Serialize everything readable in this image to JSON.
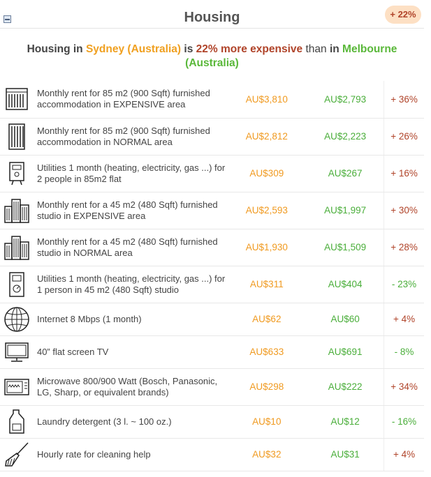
{
  "header": {
    "title": "Housing",
    "badge": "+ 22%"
  },
  "summary": {
    "prefix": "Housing in",
    "city1": "Sydney (Australia)",
    "is": "is",
    "pct_text": "22% more expensive",
    "than": "than",
    "in": "in",
    "city2_line1": "Melbourne",
    "city2_line2": "(Australia)"
  },
  "colors": {
    "city1": "#f0a020",
    "city2": "#5ab83a",
    "increase": "#b0442a",
    "decrease": "#4aae3a",
    "badge_bg": "#fde0c4"
  },
  "rows": [
    {
      "icon": "apartment-building-icon",
      "label": "Monthly rent for 85 m2 (900 Sqft) furnished accommodation in EXPENSIVE area",
      "value1": "AU$3,810",
      "value2": "AU$2,793",
      "diff": "+ 36%",
      "trend": "up"
    },
    {
      "icon": "tall-building-icon",
      "label": "Monthly rent for 85 m2 (900 Sqft) furnished accommodation in NORMAL area",
      "value1": "AU$2,812",
      "value2": "AU$2,223",
      "diff": "+ 26%",
      "trend": "up"
    },
    {
      "icon": "utility-meter-icon",
      "label": "Utilities 1 month (heating, electricity, gas ...) for 2 people in 85m2 flat",
      "value1": "AU$309",
      "value2": "AU$267",
      "diff": "+ 16%",
      "trend": "up"
    },
    {
      "icon": "city-buildings-icon",
      "label": "Monthly rent for a 45 m2 (480 Sqft) furnished studio in EXPENSIVE area",
      "value1": "AU$2,593",
      "value2": "AU$1,997",
      "diff": "+ 30%",
      "trend": "up"
    },
    {
      "icon": "city-buildings-icon",
      "label": "Monthly rent for a 45 m2 (480 Sqft) furnished studio in NORMAL area",
      "value1": "AU$1,930",
      "value2": "AU$1,509",
      "diff": "+ 28%",
      "trend": "up"
    },
    {
      "icon": "electric-meter-icon",
      "label": "Utilities 1 month (heating, electricity, gas ...) for 1 person in 45 m2 (480 Sqft) studio",
      "value1": "AU$311",
      "value2": "AU$404",
      "diff": "- 23%",
      "trend": "down"
    },
    {
      "icon": "globe-icon",
      "label": "Internet 8 Mbps (1 month)",
      "value1": "AU$62",
      "value2": "AU$60",
      "diff": "+ 4%",
      "trend": "up"
    },
    {
      "icon": "tv-icon",
      "label": "40” flat screen TV",
      "value1": "AU$633",
      "value2": "AU$691",
      "diff": "- 8%",
      "trend": "down"
    },
    {
      "icon": "microwave-icon",
      "label": "Microwave 800/900 Watt (Bosch, Panasonic, LG, Sharp, or equivalent brands)",
      "value1": "AU$298",
      "value2": "AU$222",
      "diff": "+ 34%",
      "trend": "up"
    },
    {
      "icon": "detergent-bottle-icon",
      "label": "Laundry detergent (3 l. ~ 100 oz.)",
      "value1": "AU$10",
      "value2": "AU$12",
      "diff": "- 16%",
      "trend": "down"
    },
    {
      "icon": "broom-icon",
      "label": "Hourly rate for cleaning help",
      "value1": "AU$32",
      "value2": "AU$31",
      "diff": "+ 4%",
      "trend": "up"
    }
  ]
}
